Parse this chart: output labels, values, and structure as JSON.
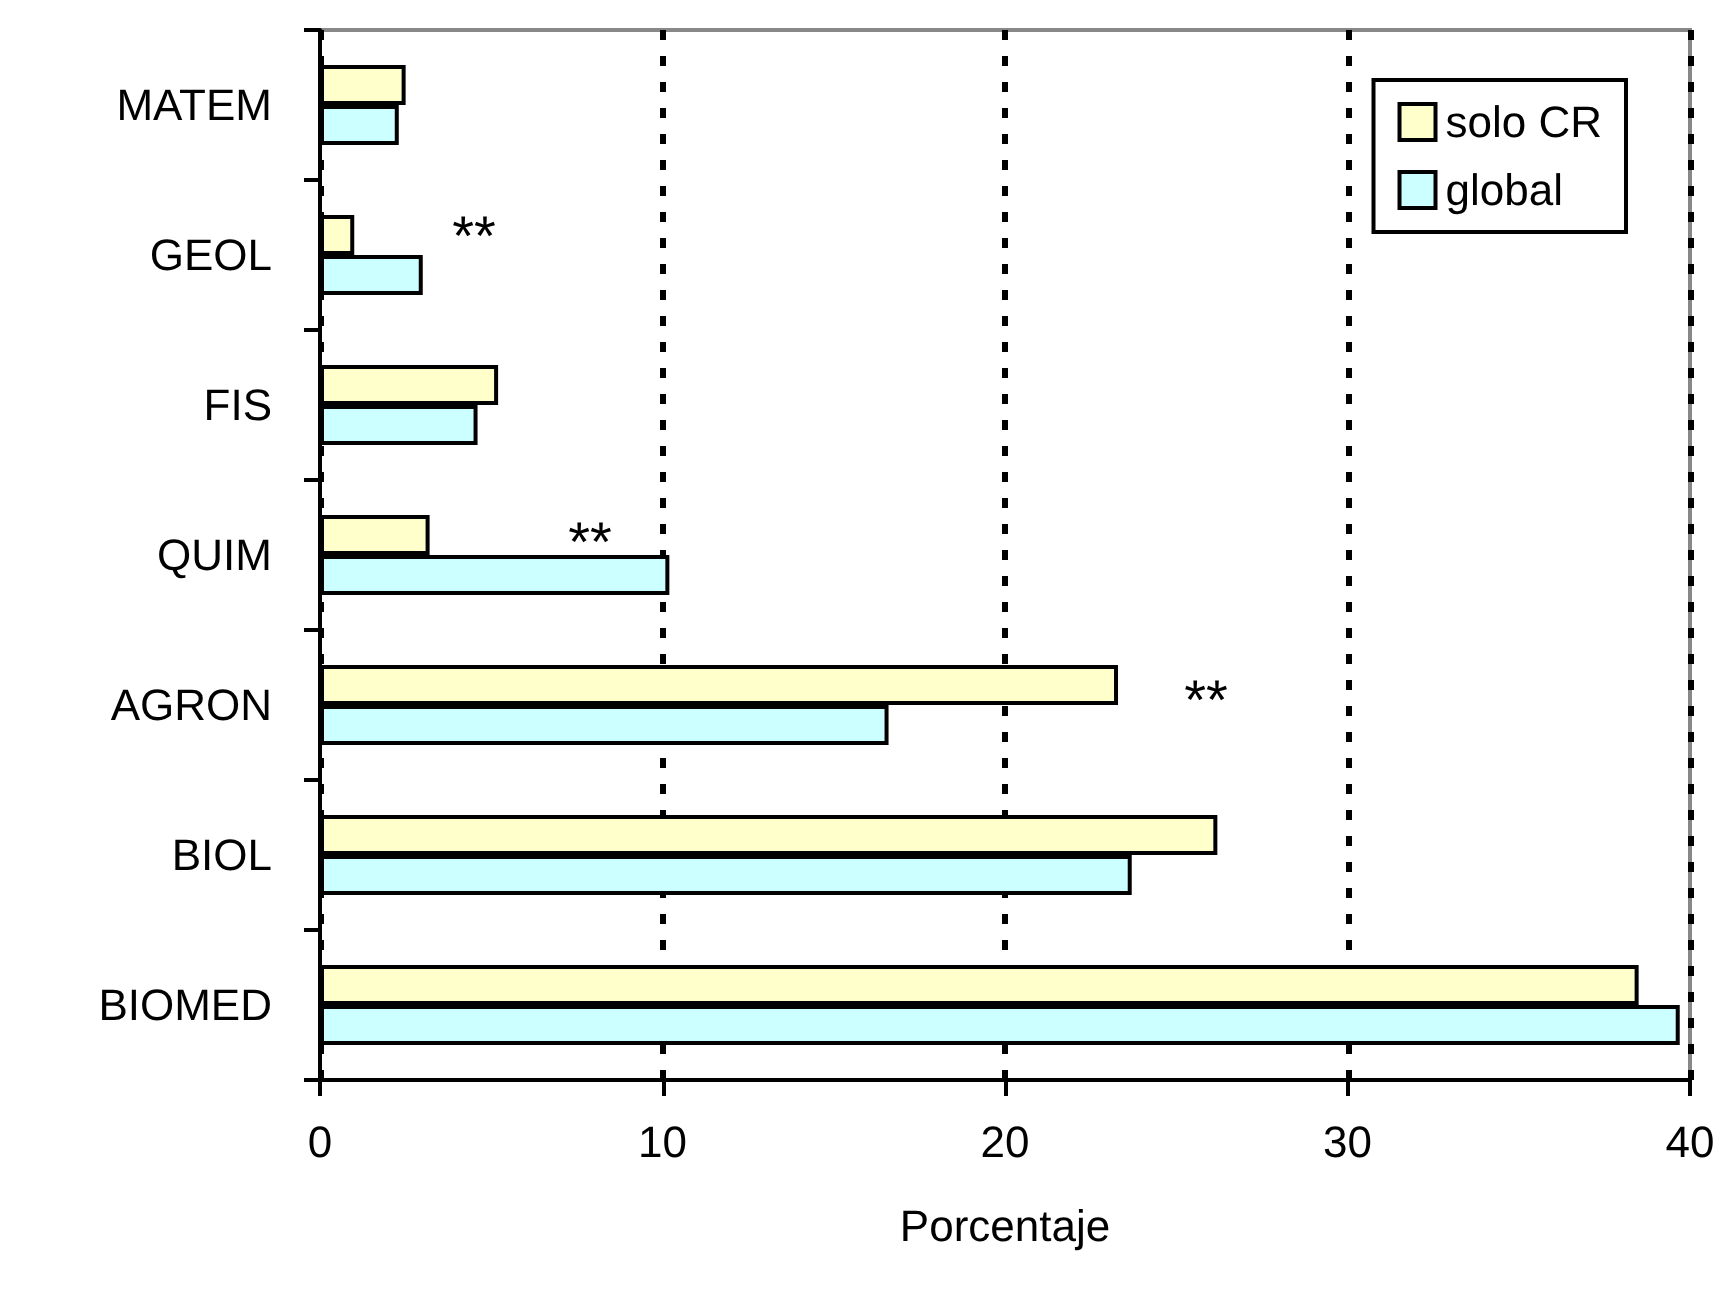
{
  "chart_data": {
    "type": "bar",
    "orientation": "horizontal",
    "xlabel": "Porcentaje",
    "categories": [
      "MATEM",
      "GEOL",
      "FIS",
      "QUIM",
      "AGRON",
      "BIOL",
      "BIOMED"
    ],
    "series": [
      {
        "name": "solo CR",
        "color": "#ffffcc",
        "values": [
          2.5,
          1.0,
          5.2,
          3.2,
          23.3,
          26.2,
          38.5
        ]
      },
      {
        "name": "global",
        "color": "#ccffff",
        "values": [
          2.3,
          3.0,
          4.6,
          10.2,
          16.6,
          23.7,
          39.7
        ]
      }
    ],
    "xlim": [
      0,
      40
    ],
    "xticks": [
      0,
      10,
      20,
      30,
      40
    ],
    "grid": "x",
    "legend": "top right",
    "annotations": [
      "**",
      "**",
      "**"
    ]
  }
}
